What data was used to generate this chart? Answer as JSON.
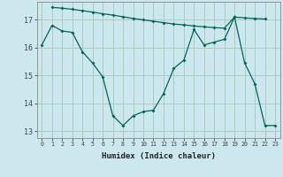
{
  "xlabel": "Humidex (Indice chaleur)",
  "bg_color": "#cce8ee",
  "grid_color": "#aaccbb",
  "line_color": "#006655",
  "xlim": [
    -0.5,
    23.5
  ],
  "ylim": [
    12.75,
    17.65
  ],
  "x_ticks": [
    0,
    1,
    2,
    3,
    4,
    5,
    6,
    7,
    8,
    9,
    10,
    11,
    12,
    13,
    14,
    15,
    16,
    17,
    18,
    19,
    20,
    21,
    22,
    23
  ],
  "y_ticks": [
    13,
    14,
    15,
    16,
    17
  ],
  "series1_x": [
    1,
    2,
    3,
    4,
    5,
    6,
    7,
    8,
    9,
    10,
    11,
    12,
    13,
    14,
    15,
    16,
    17,
    18,
    19,
    20,
    21,
    22
  ],
  "series1_y": [
    17.45,
    17.42,
    17.38,
    17.33,
    17.28,
    17.22,
    17.17,
    17.11,
    17.05,
    17.0,
    16.95,
    16.9,
    16.85,
    16.82,
    16.78,
    16.75,
    16.72,
    16.7,
    17.1,
    17.07,
    17.05,
    17.03
  ],
  "series2_x": [
    0,
    1,
    2,
    3,
    4,
    5,
    6,
    7,
    8,
    9,
    10,
    11,
    12,
    13,
    14,
    15,
    16,
    17,
    18,
    19,
    20,
    21,
    22,
    23
  ],
  "series2_y": [
    16.1,
    16.8,
    16.6,
    16.55,
    15.85,
    15.45,
    14.95,
    13.55,
    13.2,
    13.55,
    13.7,
    13.75,
    14.35,
    15.25,
    15.55,
    16.65,
    16.1,
    16.2,
    16.3,
    17.1,
    15.45,
    14.7,
    13.2,
    13.2
  ]
}
